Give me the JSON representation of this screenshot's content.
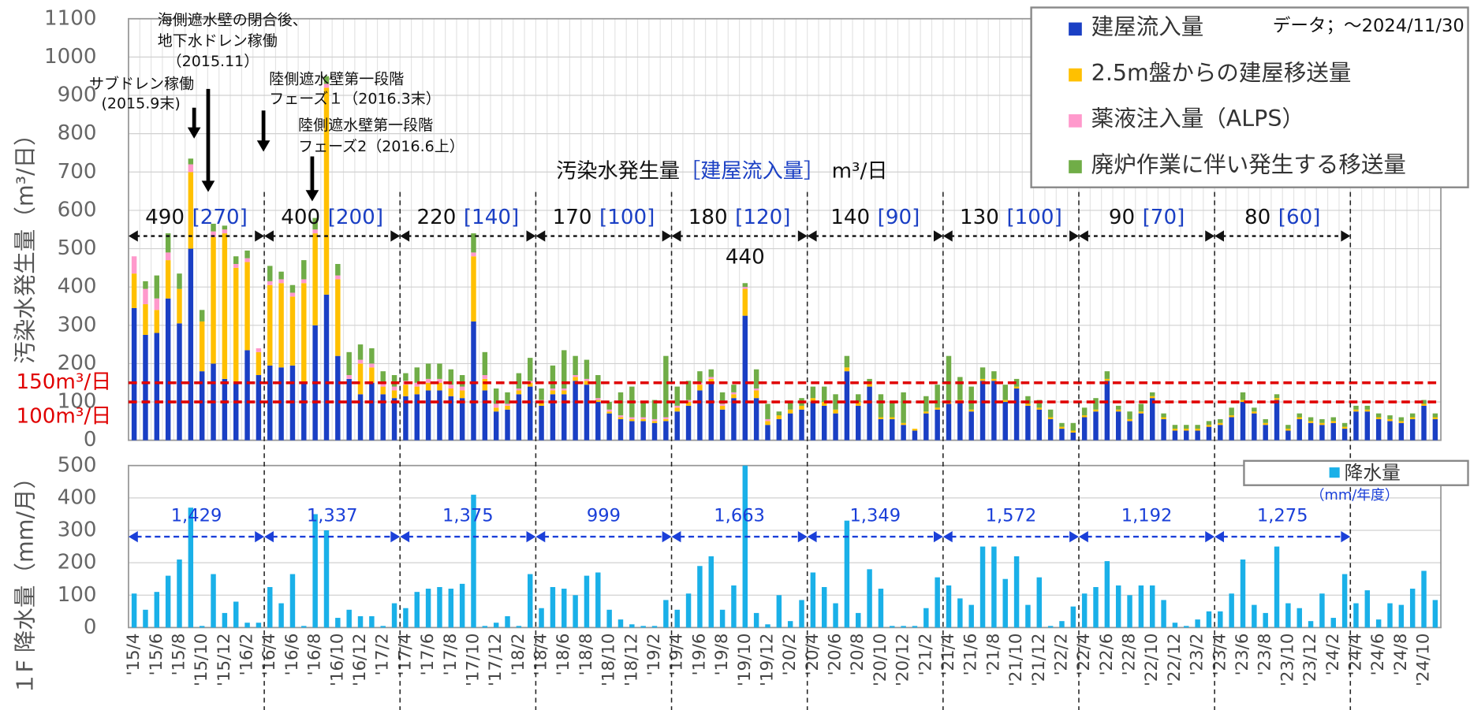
{
  "chart_data": [
    {
      "type": "bar",
      "stacked": true,
      "y_label": "汚染水発生量（m³/日）",
      "ylim": [
        0,
        1100
      ],
      "yticks": [
        0,
        100,
        200,
        300,
        400,
        500,
        600,
        700,
        800,
        900,
        1000,
        1100
      ],
      "grid": true,
      "legend_note": "データ；～2024/11/30",
      "series": [
        {
          "name": "建屋流入量",
          "color": "#1a3fc4",
          "values": [
            345,
            275,
            280,
            370,
            305,
            500,
            180,
            200,
            160,
            150,
            235,
            170,
            195,
            190,
            195,
            150,
            300,
            380,
            220,
            160,
            120,
            150,
            120,
            110,
            115,
            120,
            130,
            130,
            115,
            110,
            310,
            130,
            75,
            80,
            120,
            140,
            90,
            120,
            120,
            155,
            145,
            100,
            70,
            55,
            50,
            50,
            45,
            50,
            75,
            90,
            130,
            150,
            80,
            110,
            325,
            110,
            40,
            55,
            70,
            80,
            100,
            90,
            70,
            180,
            90,
            140,
            55,
            55,
            40,
            25,
            70,
            80,
            95,
            100,
            75,
            155,
            155,
            100,
            135,
            90,
            80,
            55,
            30,
            20,
            60,
            75,
            155,
            75,
            50,
            70,
            110,
            55,
            25,
            25,
            25,
            35,
            40,
            60,
            100,
            70,
            40,
            105,
            25,
            55,
            45,
            40,
            45,
            30,
            75,
            75,
            55,
            50,
            45,
            55,
            90,
            55
          ]
        },
        {
          "name": "2.5m盤からの建屋移送量",
          "color": "#ffc000",
          "values": [
            90,
            80,
            60,
            100,
            90,
            200,
            130,
            330,
            380,
            300,
            230,
            60,
            210,
            220,
            180,
            260,
            240,
            540,
            200,
            0,
            80,
            40,
            20,
            20,
            30,
            20,
            20,
            20,
            20,
            20,
            170,
            30,
            10,
            10,
            10,
            10,
            10,
            10,
            10,
            10,
            10,
            5,
            5,
            5,
            5,
            5,
            5,
            5,
            10,
            10,
            15,
            10,
            10,
            10,
            70,
            20,
            10,
            10,
            10,
            10,
            10,
            10,
            10,
            10,
            10,
            10,
            5,
            5,
            5,
            5,
            5,
            5,
            5,
            5,
            5,
            5,
            5,
            5,
            5,
            5,
            5,
            5,
            5,
            5,
            5,
            5,
            5,
            5,
            5,
            5,
            5,
            5,
            5,
            5,
            5,
            5,
            5,
            5,
            5,
            5,
            5,
            5,
            5,
            5,
            5,
            5,
            5,
            5,
            5,
            5,
            5,
            5,
            5,
            5,
            5,
            5
          ]
        },
        {
          "name": "薬液注入量（ALPS）",
          "color": "#ff99cc",
          "values": [
            45,
            40,
            30,
            20,
            0,
            20,
            0,
            15,
            10,
            10,
            10,
            10,
            10,
            10,
            10,
            10,
            10,
            10,
            10,
            10,
            10,
            10,
            10,
            10,
            10,
            10,
            10,
            10,
            10,
            10,
            10,
            10,
            10,
            5,
            5,
            5,
            5,
            5,
            5,
            5,
            5,
            5,
            5,
            5,
            5,
            5,
            5,
            5,
            5,
            5,
            5,
            5,
            5,
            5,
            5,
            5,
            5,
            0,
            0,
            0,
            0,
            0,
            0,
            0,
            0,
            0,
            0,
            0,
            0,
            0,
            0,
            0,
            0,
            0,
            0,
            0,
            0,
            0,
            0,
            0,
            0,
            0,
            0,
            0,
            0,
            0,
            0,
            0,
            0,
            0,
            0,
            0,
            0,
            0,
            0,
            0,
            0,
            0,
            0,
            0,
            0,
            0,
            0,
            0,
            0,
            0,
            0,
            0,
            0,
            0,
            0,
            0,
            0,
            0,
            0,
            0
          ]
        },
        {
          "name": "廃炉作業に伴い発生する移送量",
          "color": "#70ad47",
          "values": [
            0,
            20,
            60,
            50,
            40,
            15,
            30,
            20,
            10,
            20,
            20,
            0,
            40,
            20,
            20,
            50,
            30,
            20,
            30,
            60,
            40,
            40,
            30,
            30,
            20,
            40,
            40,
            40,
            40,
            30,
            50,
            60,
            40,
            30,
            40,
            60,
            30,
            60,
            100,
            50,
            50,
            60,
            20,
            60,
            80,
            40,
            50,
            160,
            50,
            50,
            30,
            20,
            30,
            20,
            10,
            50,
            40,
            10,
            20,
            20,
            30,
            40,
            40,
            30,
            20,
            10,
            60,
            40,
            80,
            0,
            40,
            60,
            120,
            60,
            60,
            30,
            20,
            40,
            20,
            20,
            20,
            20,
            10,
            20,
            20,
            30,
            20,
            10,
            20,
            20,
            10,
            10,
            10,
            10,
            10,
            10,
            10,
            20,
            20,
            10,
            10,
            10,
            10,
            10,
            10,
            10,
            10,
            10,
            10,
            10,
            10,
            10,
            10,
            10,
            10,
            10
          ]
        }
      ],
      "reference_lines": [
        {
          "value": 150,
          "label": "150m³/日"
        },
        {
          "value": 100,
          "label": "100m³/日"
        }
      ],
      "reference_color": "#e00000",
      "caption": {
        "prefix": "汚染水発生量",
        "highlight": "［建屋流入量］",
        "unit": "m³/日"
      },
      "periods": [
        {
          "total": "490",
          "inflow": "[270]"
        },
        {
          "total": "400",
          "inflow": "[200]"
        },
        {
          "total": "220",
          "inflow": "[140]"
        },
        {
          "total": "170",
          "inflow": "[100]"
        },
        {
          "total": "180",
          "inflow": "[120]"
        },
        {
          "total": "140",
          "inflow": "[90]"
        },
        {
          "total": "130",
          "inflow": "[100]"
        },
        {
          "total": "90",
          "inflow": "[70]"
        },
        {
          "total": "80",
          "inflow": "[60]"
        }
      ],
      "peak_label": "440",
      "events": [
        {
          "lines": [
            "海側遮水壁の閉合後、",
            "地下水ドレン稼働",
            "（2015.11）"
          ]
        },
        {
          "lines": [
            "サブドレン稼働",
            "(2015.9末)"
          ]
        },
        {
          "lines": [
            "陸側遮水壁第一段階",
            "フェーズ１（2016.3末）"
          ]
        },
        {
          "lines": [
            "陸側遮水壁第一段階",
            "フェーズ2（2016.6上）"
          ]
        }
      ]
    },
    {
      "type": "bar",
      "y_label": "１F 降水量（mm/月）",
      "ylim": [
        0,
        500
      ],
      "yticks": [
        0,
        100,
        200,
        300,
        400,
        500
      ],
      "grid": true,
      "categories": [
        "'15/4",
        null,
        "'15/6",
        null,
        "'15/8",
        null,
        "'15/10",
        null,
        "'15/12",
        null,
        "'16/2",
        null,
        "'16/4",
        null,
        "'16/6",
        null,
        "'16/8",
        null,
        "'16/10",
        null,
        "'16/12",
        null,
        "'17/2",
        null,
        "'17/4",
        null,
        "'17/6",
        null,
        "'17/8",
        null,
        "'17/10",
        null,
        "'17/12",
        null,
        "'18/2",
        null,
        "'18/4",
        null,
        "'18/6",
        null,
        "'18/8",
        null,
        "'18/10",
        null,
        "'18/12",
        null,
        "'19/2",
        null,
        "'19/4",
        null,
        "'19/6",
        null,
        "'19/8",
        null,
        "'19/10",
        null,
        "'19/12",
        null,
        "'20/2",
        null,
        "'20/4",
        null,
        "'20/6",
        null,
        "'20/8",
        null,
        "'20/10",
        null,
        "'20/12",
        null,
        "'21/2",
        null,
        "'21/4",
        null,
        "'21/6",
        null,
        "'21/8",
        null,
        "'21/10",
        null,
        "'21/12",
        null,
        "'22/2",
        null,
        "'22/4",
        null,
        "'22/6",
        null,
        "'22/8",
        null,
        "'22/10",
        null,
        "'22/12",
        null,
        "'23/2",
        null,
        "'23/4",
        null,
        "'23/6",
        null,
        "'23/8",
        null,
        "'23/10",
        null,
        "'23/12",
        null,
        "'24/2",
        null,
        "'24/4",
        null,
        "'24/6",
        null,
        "'24/8",
        null,
        "'24/10",
        null
      ],
      "series": [
        {
          "name": "降水量",
          "color": "#1ab0e8",
          "values": [
            105,
            55,
            110,
            160,
            210,
            370,
            5,
            165,
            45,
            80,
            15,
            15,
            125,
            75,
            165,
            5,
            350,
            300,
            30,
            55,
            35,
            35,
            5,
            75,
            60,
            110,
            120,
            125,
            120,
            135,
            410,
            5,
            15,
            35,
            5,
            165,
            60,
            125,
            120,
            100,
            160,
            170,
            55,
            25,
            10,
            5,
            5,
            85,
            55,
            105,
            190,
            220,
            55,
            130,
            500,
            45,
            10,
            100,
            20,
            85,
            170,
            125,
            75,
            330,
            45,
            180,
            120,
            5,
            5,
            5,
            60,
            155,
            130,
            90,
            70,
            250,
            250,
            150,
            220,
            70,
            155,
            5,
            20,
            65,
            105,
            125,
            205,
            130,
            100,
            130,
            130,
            85,
            15,
            5,
            25,
            50,
            50,
            105,
            210,
            70,
            45,
            250,
            75,
            60,
            20,
            105,
            30,
            165,
            75,
            115,
            25,
            75,
            70,
            120,
            175,
            85
          ]
        }
      ],
      "legend_note": "（mm/年度）",
      "period_totals": [
        "1,429",
        "1,337",
        "1,375",
        "999",
        "1,663",
        "1,349",
        "1,572",
        "1,192",
        "1,275"
      ]
    }
  ]
}
